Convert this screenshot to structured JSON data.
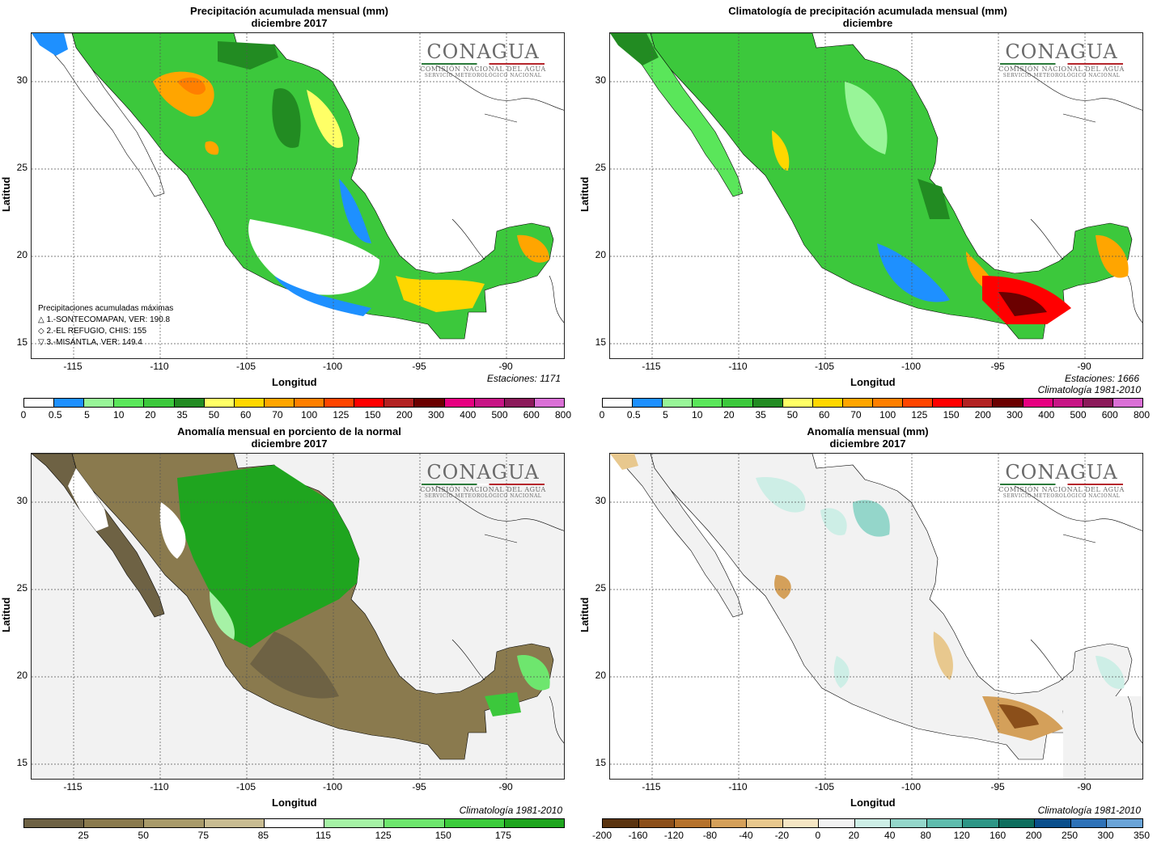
{
  "axes": {
    "ylabel": "Latitud",
    "xlabel": "Longitud",
    "yticks": [
      "30",
      "25",
      "20",
      "15"
    ],
    "xticks": [
      "-115",
      "-110",
      "-105",
      "-100",
      "-95",
      "-90"
    ]
  },
  "logo": {
    "name": "CONAGUA",
    "line1": "COMISIÓN NACIONAL DEL AGUA",
    "line2": "SERVICIO METEOROLÓGICO NACIONAL"
  },
  "panels": {
    "p1": {
      "title1": "Precipitación acumulada mensual (mm)",
      "title2": "diciembre 2017",
      "note1": "Estaciones:  1171",
      "max_title": "Precipitaciones acumuladas máximas",
      "max_items": [
        "△ 1.-SONTECOMAPAN, VER: 190.8",
        "◇ 2.-EL REFUGIO, CHIS: 155",
        "▽ 3.-MISANTLA, VER: 149.4"
      ]
    },
    "p2": {
      "title1": "Climatología de precipitación acumulada mensual (mm)",
      "title2": "diciembre",
      "note1": "Estaciones:  1666",
      "note2": "Climatología 1981-2010"
    },
    "p3": {
      "title1": "Anomalía mensual en porciento de la normal",
      "title2": "diciembre 2017",
      "note1": "Climatología 1981-2010"
    },
    "p4": {
      "title1": "Anomalía mensual (mm)",
      "title2": "diciembre 2017",
      "note1": "Climatología 1981-2010"
    }
  },
  "legends": {
    "precip": {
      "labels": [
        "0",
        "0.5",
        "5",
        "10",
        "20",
        "35",
        "50",
        "60",
        "70",
        "100",
        "125",
        "150",
        "200",
        "300",
        "400",
        "500",
        "600",
        "800"
      ],
      "colors": [
        "#ffffff",
        "#1e90ff",
        "#98f598",
        "#5ae65a",
        "#3cc83c",
        "#228b22",
        "#ffff66",
        "#ffd700",
        "#ffa500",
        "#ff7f00",
        "#ff4500",
        "#ff0000",
        "#b22222",
        "#6b0000",
        "#e60080",
        "#c71585",
        "#8b1a5a",
        "#da70d6"
      ]
    },
    "percent": {
      "labels": [
        "25",
        "50",
        "75",
        "85",
        "115",
        "125",
        "150",
        "175"
      ],
      "colors": [
        "#6e6244",
        "#8a7a4e",
        "#a89a6a",
        "#c8bc92",
        "#ffffff",
        "#a6f2a6",
        "#6ee66e",
        "#3ccc3c",
        "#1fa51f"
      ]
    },
    "anom": {
      "labels": [
        "-200",
        "-160",
        "-120",
        "-80",
        "-40",
        "-20",
        "0",
        "20",
        "40",
        "80",
        "120",
        "160",
        "200",
        "250",
        "300",
        "350"
      ],
      "colors": [
        "#5a3410",
        "#8b4f1a",
        "#b5722c",
        "#d4a05a",
        "#e8c88e",
        "#f5e6c4",
        "#f2f2f2",
        "#cdeee6",
        "#94d6ca",
        "#5fbcad",
        "#2e9686",
        "#0e6e5e",
        "#0a4f8c",
        "#2e72b8",
        "#6aa4d8"
      ]
    }
  }
}
